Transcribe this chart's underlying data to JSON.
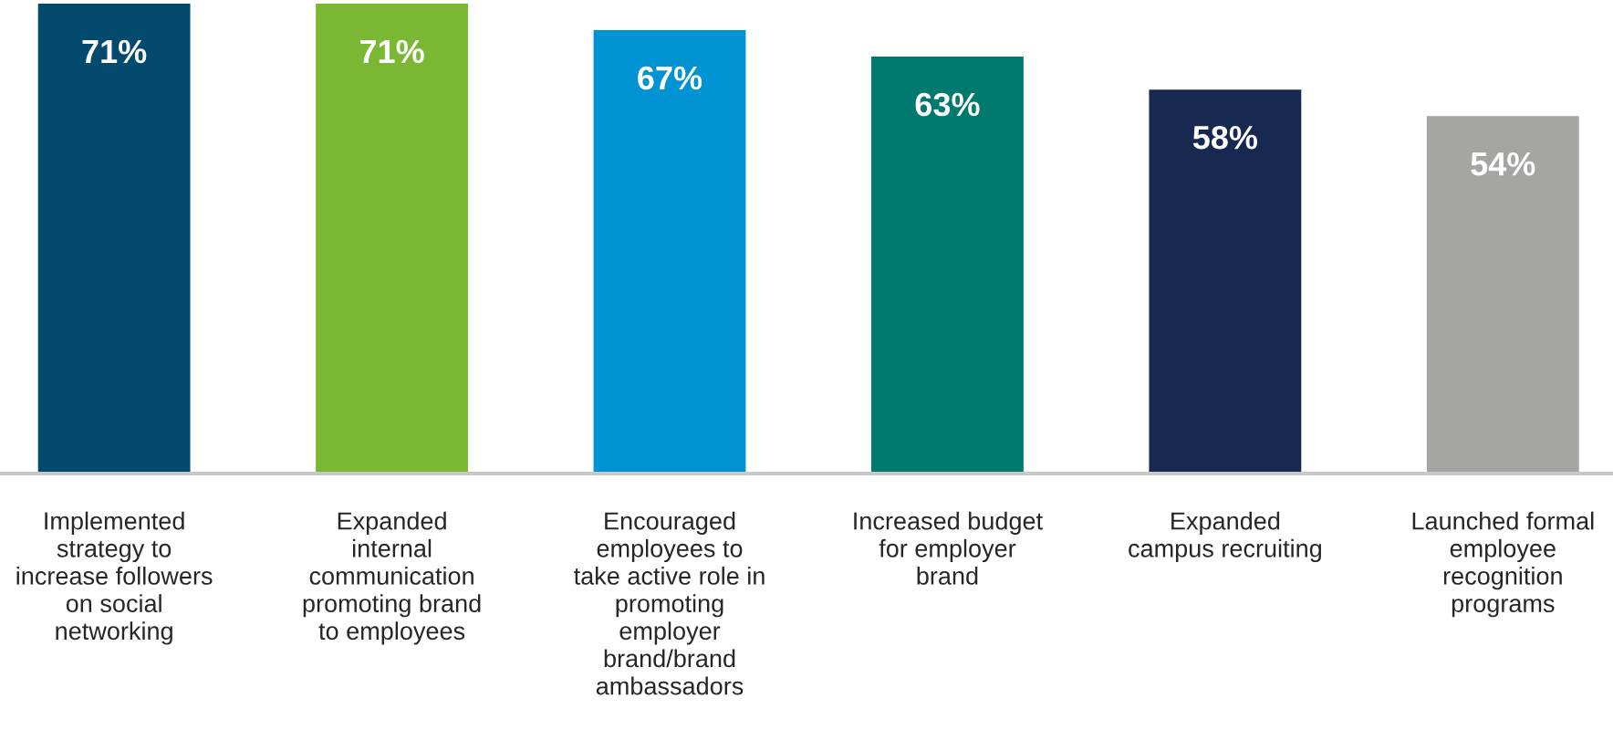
{
  "chart_data": {
    "type": "bar",
    "categories": [
      "Implemented\nstrategy to\nincrease followers\non social\nnetworking",
      "Expanded\ninternal\ncommunication\npromoting brand\nto employees",
      "Encouraged\nemployees to\ntake active role in\npromoting\nemployer\nbrand/brand\nambassadors",
      "Increased budget\nfor employer\nbrand",
      "Expanded\ncampus recruiting",
      "Launched formal\nemployee\nrecognition\nprograms"
    ],
    "values": [
      71,
      71,
      67,
      63,
      58,
      54
    ],
    "colors": [
      "#024b6e",
      "#7ab733",
      "#0093d4",
      "#007a6e",
      "#172950",
      "#a5a5a4"
    ],
    "data_labels": true,
    "value_labels": [
      "71%",
      "71%",
      "67%",
      "63%",
      "58%",
      "54%"
    ]
  }
}
